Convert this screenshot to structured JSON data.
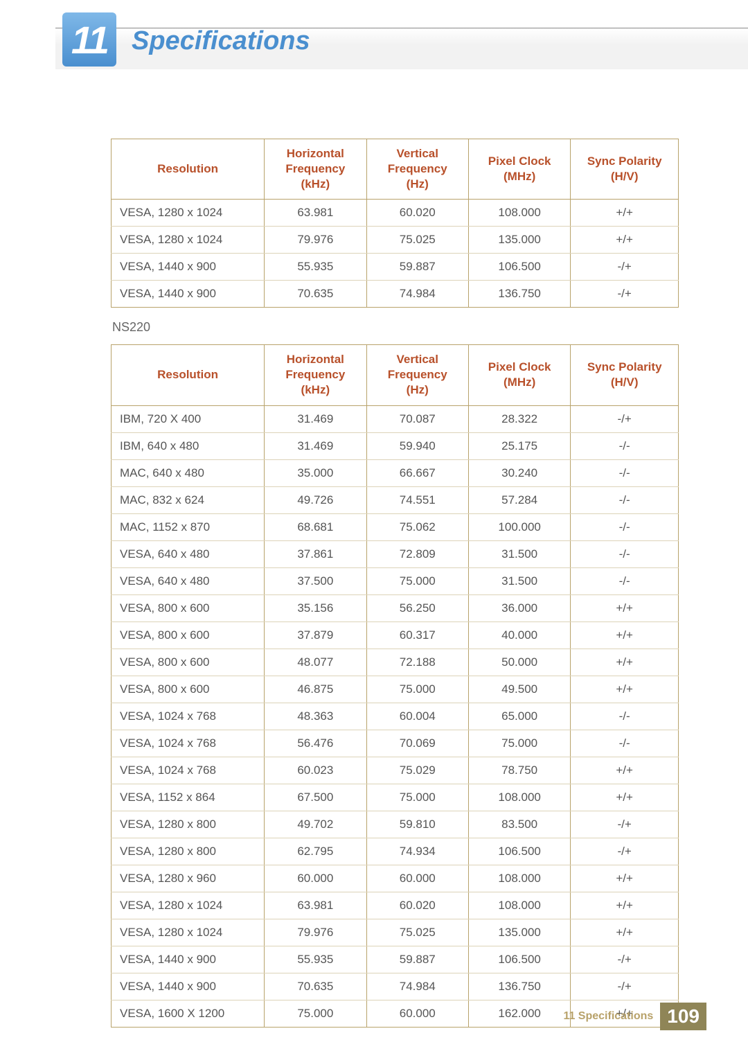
{
  "chapter": {
    "number": "11",
    "title": "Specifications"
  },
  "columns": [
    "Resolution",
    "Horizontal Frequency (kHz)",
    "Vertical Frequency (Hz)",
    "Pixel Clock (MHz)",
    "Sync Polarity (H/V)"
  ],
  "table1": {
    "rows": [
      [
        "VESA, 1280 x 1024",
        "63.981",
        "60.020",
        "108.000",
        "+/+"
      ],
      [
        "VESA, 1280 x 1024",
        "79.976",
        "75.025",
        "135.000",
        "+/+"
      ],
      [
        "VESA, 1440 x 900",
        "55.935",
        "59.887",
        "106.500",
        "-/+"
      ],
      [
        "VESA, 1440 x 900",
        "70.635",
        "74.984",
        "136.750",
        "-/+"
      ]
    ]
  },
  "subhead": "NS220",
  "table2": {
    "rows": [
      [
        "IBM, 720 X 400",
        "31.469",
        "70.087",
        "28.322",
        "-/+"
      ],
      [
        "IBM, 640 x 480",
        "31.469",
        "59.940",
        "25.175",
        "-/-"
      ],
      [
        "MAC, 640 x 480",
        "35.000",
        "66.667",
        "30.240",
        "-/-"
      ],
      [
        "MAC, 832 x 624",
        "49.726",
        "74.551",
        "57.284",
        "-/-"
      ],
      [
        "MAC, 1152 x 870",
        "68.681",
        "75.062",
        "100.000",
        "-/-"
      ],
      [
        "VESA, 640 x 480",
        "37.861",
        "72.809",
        "31.500",
        "-/-"
      ],
      [
        "VESA, 640 x 480",
        "37.500",
        "75.000",
        "31.500",
        "-/-"
      ],
      [
        "VESA, 800 x 600",
        "35.156",
        "56.250",
        "36.000",
        "+/+"
      ],
      [
        "VESA, 800 x 600",
        "37.879",
        "60.317",
        "40.000",
        "+/+"
      ],
      [
        "VESA, 800 x 600",
        "48.077",
        "72.188",
        "50.000",
        "+/+"
      ],
      [
        "VESA, 800 x 600",
        "46.875",
        "75.000",
        "49.500",
        "+/+"
      ],
      [
        "VESA, 1024 x 768",
        "48.363",
        "60.004",
        "65.000",
        "-/-"
      ],
      [
        "VESA, 1024 x 768",
        "56.476",
        "70.069",
        "75.000",
        "-/-"
      ],
      [
        "VESA, 1024 x 768",
        "60.023",
        "75.029",
        "78.750",
        "+/+"
      ],
      [
        "VESA, 1152 x 864",
        "67.500",
        "75.000",
        "108.000",
        "+/+"
      ],
      [
        "VESA, 1280 x 800",
        "49.702",
        "59.810",
        "83.500",
        "-/+"
      ],
      [
        "VESA, 1280 x 800",
        "62.795",
        "74.934",
        "106.500",
        "-/+"
      ],
      [
        "VESA, 1280 x 960",
        "60.000",
        "60.000",
        "108.000",
        "+/+"
      ],
      [
        "VESA, 1280 x 1024",
        "63.981",
        "60.020",
        "108.000",
        "+/+"
      ],
      [
        "VESA, 1280 x 1024",
        "79.976",
        "75.025",
        "135.000",
        "+/+"
      ],
      [
        "VESA, 1440 x 900",
        "55.935",
        "59.887",
        "106.500",
        "-/+"
      ],
      [
        "VESA, 1440 x 900",
        "70.635",
        "74.984",
        "136.750",
        "-/+"
      ],
      [
        "VESA, 1600 X 1200",
        "75.000",
        "60.000",
        "162.000",
        "+/+"
      ]
    ]
  },
  "footer": {
    "label": "11 Specifications",
    "page": "109"
  },
  "colors": {
    "header_text": "#b8502a",
    "table_border": "#b8a26a",
    "row_divider": "#dcd3b8",
    "chapter_blue": "#4a8fcf",
    "footer_brown": "#8f8557"
  },
  "col_widths_pct": [
    27,
    18,
    18,
    18,
    19
  ]
}
